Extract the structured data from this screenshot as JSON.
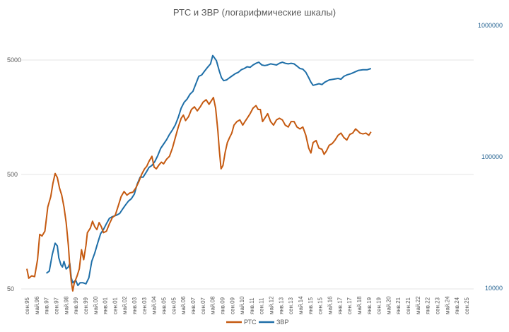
{
  "colors": {
    "rts": "#c55a11",
    "zvr": "#1f6fa8",
    "grid": "#e6e6e6",
    "text": "#595959",
    "right_axis_text": "#1f5f8f"
  },
  "chart_data": {
    "type": "line",
    "title": "РТС и ЗВР (логарифмические шкалы)",
    "x_tick_labels": [
      "сен.95",
      "май.96",
      "янв.97",
      "сен.97",
      "май.98",
      "янв.99",
      "сен.99",
      "май.00",
      "янв.01",
      "сен.01",
      "май.02",
      "янв.03",
      "сен.03",
      "май.04",
      "янв.05",
      "сен.05",
      "май.06",
      "янв.07",
      "сен.07",
      "май.08",
      "янв.09",
      "сен.09",
      "май.10",
      "янв.11",
      "сен.11",
      "май.12",
      "янв.13",
      "сен.13",
      "май.14",
      "янв.15",
      "сен.15",
      "май.16",
      "янв.17",
      "сен.17",
      "май.18",
      "янв.19",
      "сен.19",
      "май.20",
      "янв.21",
      "сен.21",
      "май.22",
      "янв.22",
      "сен.23",
      "май.24",
      "янв.24",
      "сен.25"
    ],
    "x_range": [
      1995.67,
      2025.67
    ],
    "y_left": {
      "scale": "log",
      "range": [
        50,
        5000
      ],
      "tick_labels": [
        "50",
        "500",
        "5000"
      ],
      "tick_values": [
        50,
        500,
        5000
      ]
    },
    "y_right": {
      "scale": "log",
      "range": [
        10000,
        1000000
      ],
      "tick_labels": [
        "10000",
        "100000",
        "1000000"
      ],
      "tick_values": [
        10000,
        100000,
        1000000
      ]
    },
    "series": [
      {
        "name": "РТС",
        "axis": "left",
        "points": [
          [
            1995.67,
            75
          ],
          [
            1995.8,
            62
          ],
          [
            1996.0,
            65
          ],
          [
            1996.2,
            64
          ],
          [
            1996.4,
            90
          ],
          [
            1996.55,
            150
          ],
          [
            1996.7,
            145
          ],
          [
            1996.9,
            160
          ],
          [
            1997.1,
            260
          ],
          [
            1997.3,
            320
          ],
          [
            1997.45,
            420
          ],
          [
            1997.6,
            510
          ],
          [
            1997.75,
            470
          ],
          [
            1997.9,
            380
          ],
          [
            1998.05,
            330
          ],
          [
            1998.2,
            260
          ],
          [
            1998.35,
            190
          ],
          [
            1998.5,
            120
          ],
          [
            1998.6,
            80
          ],
          [
            1998.7,
            58
          ],
          [
            1998.8,
            48
          ],
          [
            1998.9,
            56
          ],
          [
            1999.1,
            65
          ],
          [
            1999.25,
            75
          ],
          [
            1999.4,
            110
          ],
          [
            1999.55,
            90
          ],
          [
            1999.7,
            120
          ],
          [
            1999.8,
            155
          ],
          [
            2000.0,
            170
          ],
          [
            2000.15,
            195
          ],
          [
            2000.3,
            175
          ],
          [
            2000.45,
            165
          ],
          [
            2000.6,
            190
          ],
          [
            2000.75,
            175
          ],
          [
            2000.9,
            155
          ],
          [
            2001.1,
            160
          ],
          [
            2001.3,
            185
          ],
          [
            2001.5,
            210
          ],
          [
            2001.7,
            220
          ],
          [
            2001.9,
            265
          ],
          [
            2002.1,
            320
          ],
          [
            2002.3,
            355
          ],
          [
            2002.5,
            330
          ],
          [
            2002.7,
            345
          ],
          [
            2002.9,
            350
          ],
          [
            2003.1,
            380
          ],
          [
            2003.3,
            430
          ],
          [
            2003.5,
            500
          ],
          [
            2003.7,
            560
          ],
          [
            2003.85,
            590
          ],
          [
            2004.0,
            650
          ],
          [
            2004.2,
            720
          ],
          [
            2004.35,
            580
          ],
          [
            2004.5,
            560
          ],
          [
            2004.7,
            610
          ],
          [
            2004.85,
            640
          ],
          [
            2005.0,
            620
          ],
          [
            2005.2,
            680
          ],
          [
            2005.4,
            720
          ],
          [
            2005.6,
            850
          ],
          [
            2005.8,
            1050
          ],
          [
            2006.0,
            1300
          ],
          [
            2006.2,
            1550
          ],
          [
            2006.35,
            1650
          ],
          [
            2006.5,
            1480
          ],
          [
            2006.7,
            1600
          ],
          [
            2006.9,
            1850
          ],
          [
            2007.1,
            1950
          ],
          [
            2007.3,
            1800
          ],
          [
            2007.5,
            1950
          ],
          [
            2007.7,
            2150
          ],
          [
            2007.9,
            2250
          ],
          [
            2008.1,
            2050
          ],
          [
            2008.3,
            2250
          ],
          [
            2008.4,
            2350
          ],
          [
            2008.55,
            1900
          ],
          [
            2008.7,
            1200
          ],
          [
            2008.8,
            820
          ],
          [
            2008.92,
            560
          ],
          [
            2009.05,
            600
          ],
          [
            2009.2,
            780
          ],
          [
            2009.35,
            950
          ],
          [
            2009.5,
            1050
          ],
          [
            2009.65,
            1150
          ],
          [
            2009.8,
            1350
          ],
          [
            2010.0,
            1450
          ],
          [
            2010.2,
            1500
          ],
          [
            2010.4,
            1350
          ],
          [
            2010.55,
            1450
          ],
          [
            2010.7,
            1550
          ],
          [
            2010.9,
            1700
          ],
          [
            2011.1,
            1900
          ],
          [
            2011.3,
            2000
          ],
          [
            2011.45,
            1850
          ],
          [
            2011.6,
            1850
          ],
          [
            2011.75,
            1450
          ],
          [
            2011.9,
            1550
          ],
          [
            2012.1,
            1700
          ],
          [
            2012.3,
            1450
          ],
          [
            2012.5,
            1350
          ],
          [
            2012.7,
            1500
          ],
          [
            2012.9,
            1550
          ],
          [
            2013.1,
            1500
          ],
          [
            2013.3,
            1350
          ],
          [
            2013.5,
            1300
          ],
          [
            2013.7,
            1450
          ],
          [
            2013.9,
            1450
          ],
          [
            2014.1,
            1300
          ],
          [
            2014.3,
            1250
          ],
          [
            2014.5,
            1300
          ],
          [
            2014.7,
            1100
          ],
          [
            2014.9,
            850
          ],
          [
            2015.05,
            770
          ],
          [
            2015.2,
            950
          ],
          [
            2015.4,
            990
          ],
          [
            2015.6,
            850
          ],
          [
            2015.8,
            830
          ],
          [
            2015.95,
            750
          ],
          [
            2016.1,
            800
          ],
          [
            2016.3,
            900
          ],
          [
            2016.5,
            930
          ],
          [
            2016.7,
            1000
          ],
          [
            2016.9,
            1100
          ],
          [
            2017.1,
            1150
          ],
          [
            2017.3,
            1050
          ],
          [
            2017.5,
            1000
          ],
          [
            2017.7,
            1120
          ],
          [
            2017.9,
            1150
          ],
          [
            2018.1,
            1250
          ],
          [
            2018.25,
            1200
          ],
          [
            2018.4,
            1150
          ],
          [
            2018.6,
            1130
          ],
          [
            2018.8,
            1150
          ],
          [
            2019.0,
            1100
          ],
          [
            2019.15,
            1180
          ]
        ]
      },
      {
        "name": "ЗВР",
        "axis": "right",
        "points": [
          [
            1997.0,
            13000
          ],
          [
            1997.2,
            13500
          ],
          [
            1997.4,
            18000
          ],
          [
            1997.6,
            22000
          ],
          [
            1997.75,
            21000
          ],
          [
            1997.85,
            17000
          ],
          [
            1998.0,
            15000
          ],
          [
            1998.1,
            14500
          ],
          [
            1998.2,
            16000
          ],
          [
            1998.35,
            14000
          ],
          [
            1998.5,
            14500
          ],
          [
            1998.6,
            15500
          ],
          [
            1998.7,
            12000
          ],
          [
            1998.8,
            11000
          ],
          [
            1999.0,
            11500
          ],
          [
            1999.15,
            10500
          ],
          [
            1999.3,
            11000
          ],
          [
            1999.5,
            11000
          ],
          [
            1999.7,
            10800
          ],
          [
            1999.9,
            12000
          ],
          [
            2000.1,
            16000
          ],
          [
            2000.3,
            18500
          ],
          [
            2000.5,
            22000
          ],
          [
            2000.7,
            26000
          ],
          [
            2000.9,
            28000
          ],
          [
            2001.1,
            31000
          ],
          [
            2001.3,
            34000
          ],
          [
            2001.5,
            35000
          ],
          [
            2001.8,
            36000
          ],
          [
            2002.0,
            37000
          ],
          [
            2002.2,
            40000
          ],
          [
            2002.4,
            43000
          ],
          [
            2002.6,
            46000
          ],
          [
            2002.8,
            48000
          ],
          [
            2003.0,
            52000
          ],
          [
            2003.2,
            62000
          ],
          [
            2003.4,
            70000
          ],
          [
            2003.6,
            70000
          ],
          [
            2003.8,
            76000
          ],
          [
            2004.0,
            83000
          ],
          [
            2004.2,
            86000
          ],
          [
            2004.4,
            92000
          ],
          [
            2004.6,
            102000
          ],
          [
            2004.8,
            116000
          ],
          [
            2005.0,
            125000
          ],
          [
            2005.2,
            135000
          ],
          [
            2005.4,
            148000
          ],
          [
            2005.6,
            160000
          ],
          [
            2005.8,
            175000
          ],
          [
            2006.0,
            200000
          ],
          [
            2006.2,
            235000
          ],
          [
            2006.4,
            260000
          ],
          [
            2006.6,
            275000
          ],
          [
            2006.8,
            300000
          ],
          [
            2007.0,
            315000
          ],
          [
            2007.2,
            360000
          ],
          [
            2007.4,
            410000
          ],
          [
            2007.6,
            420000
          ],
          [
            2007.8,
            450000
          ],
          [
            2008.0,
            480000
          ],
          [
            2008.2,
            510000
          ],
          [
            2008.35,
            590000
          ],
          [
            2008.45,
            570000
          ],
          [
            2008.6,
            540000
          ],
          [
            2008.8,
            450000
          ],
          [
            2008.95,
            400000
          ],
          [
            2009.1,
            380000
          ],
          [
            2009.3,
            385000
          ],
          [
            2009.5,
            400000
          ],
          [
            2009.7,
            415000
          ],
          [
            2009.9,
            430000
          ],
          [
            2010.1,
            440000
          ],
          [
            2010.3,
            460000
          ],
          [
            2010.5,
            470000
          ],
          [
            2010.7,
            485000
          ],
          [
            2010.9,
            480000
          ],
          [
            2011.1,
            500000
          ],
          [
            2011.3,
            515000
          ],
          [
            2011.5,
            525000
          ],
          [
            2011.7,
            500000
          ],
          [
            2011.9,
            495000
          ],
          [
            2012.1,
            500000
          ],
          [
            2012.3,
            510000
          ],
          [
            2012.5,
            505000
          ],
          [
            2012.7,
            500000
          ],
          [
            2012.9,
            515000
          ],
          [
            2013.1,
            525000
          ],
          [
            2013.3,
            515000
          ],
          [
            2013.5,
            510000
          ],
          [
            2013.7,
            515000
          ],
          [
            2013.9,
            510000
          ],
          [
            2014.1,
            490000
          ],
          [
            2014.3,
            470000
          ],
          [
            2014.5,
            465000
          ],
          [
            2014.7,
            440000
          ],
          [
            2014.9,
            400000
          ],
          [
            2015.05,
            370000
          ],
          [
            2015.2,
            350000
          ],
          [
            2015.4,
            355000
          ],
          [
            2015.6,
            360000
          ],
          [
            2015.8,
            355000
          ],
          [
            2016.0,
            370000
          ],
          [
            2016.3,
            385000
          ],
          [
            2016.6,
            390000
          ],
          [
            2016.9,
            395000
          ],
          [
            2017.1,
            390000
          ],
          [
            2017.3,
            410000
          ],
          [
            2017.5,
            420000
          ],
          [
            2017.8,
            430000
          ],
          [
            2018.0,
            440000
          ],
          [
            2018.3,
            455000
          ],
          [
            2018.6,
            460000
          ],
          [
            2018.9,
            460000
          ],
          [
            2019.15,
            470000
          ]
        ]
      }
    ]
  }
}
